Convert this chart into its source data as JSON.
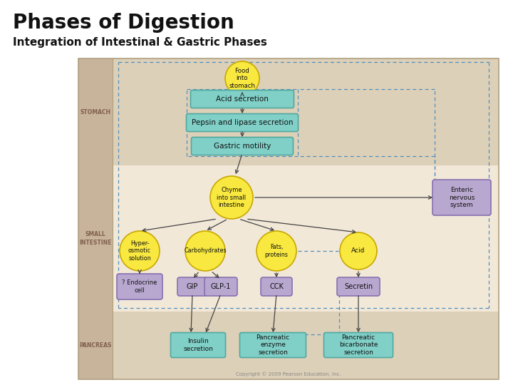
{
  "title": "Phases of Digestion",
  "subtitle": "Integration of Intestinal & Gastric Phases",
  "bg_color": "#ffffff",
  "diagram_bg": "#ede0cc",
  "stomach_bg": "#ddd0b8",
  "small_int_bg": "#f2e8d8",
  "pancreas_bg": "#ddd0b8",
  "stripe_color": "#c8b49a",
  "teal_color": "#80d0c8",
  "teal_edge": "#50a8a0",
  "yellow_color": "#f8e840",
  "yellow_edge": "#c8a800",
  "purple_color": "#b8a8d0",
  "purple_edge": "#8870b0",
  "arrow_color": "#444444",
  "dashed_color": "#5090c0",
  "text_dark": "#111111",
  "label_color": "#806050",
  "copy_color": "#888888",
  "copyright": "Copyright © 2009 Pearson Education, Inc."
}
